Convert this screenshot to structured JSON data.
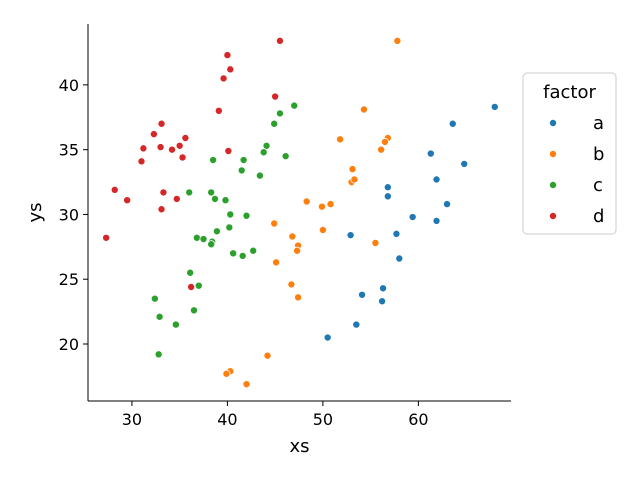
{
  "chart_data": {
    "type": "scatter",
    "title": "",
    "xlabel": "xs",
    "ylabel": "ys",
    "xlim": [
      25.4,
      69.7
    ],
    "ylim": [
      15.6,
      44.7
    ],
    "xticks": [
      30,
      40,
      50,
      60
    ],
    "yticks": [
      20,
      25,
      30,
      35,
      40
    ],
    "grid": false,
    "legend": {
      "title": "factor",
      "placement": "right"
    },
    "series": [
      {
        "name": "a",
        "color": "#1f77b4",
        "points": [
          [
            68.0,
            38.3
          ],
          [
            63.6,
            37.0
          ],
          [
            64.8,
            33.9
          ],
          [
            61.3,
            34.7
          ],
          [
            61.9,
            32.7
          ],
          [
            63.0,
            30.8
          ],
          [
            61.9,
            29.5
          ],
          [
            59.4,
            29.8
          ],
          [
            56.8,
            32.1
          ],
          [
            56.8,
            31.4
          ],
          [
            57.7,
            28.5
          ],
          [
            58.0,
            26.6
          ],
          [
            52.9,
            28.4
          ],
          [
            56.3,
            24.3
          ],
          [
            54.1,
            23.8
          ],
          [
            56.2,
            23.3
          ],
          [
            53.5,
            21.5
          ],
          [
            50.5,
            20.5
          ]
        ]
      },
      {
        "name": "b",
        "color": "#ff7f0e",
        "points": [
          [
            57.8,
            43.4
          ],
          [
            54.3,
            38.1
          ],
          [
            51.8,
            35.8
          ],
          [
            56.8,
            35.9
          ],
          [
            56.5,
            35.6
          ],
          [
            56.1,
            35.0
          ],
          [
            53.1,
            33.5
          ],
          [
            53.0,
            32.5
          ],
          [
            53.3,
            32.7
          ],
          [
            48.3,
            31.0
          ],
          [
            49.9,
            30.6
          ],
          [
            50.8,
            30.8
          ],
          [
            44.9,
            29.3
          ],
          [
            50.0,
            28.8
          ],
          [
            46.8,
            28.3
          ],
          [
            47.4,
            27.6
          ],
          [
            47.3,
            27.2
          ],
          [
            55.5,
            27.8
          ],
          [
            45.1,
            26.3
          ],
          [
            46.7,
            24.6
          ],
          [
            47.4,
            23.6
          ],
          [
            44.2,
            19.1
          ],
          [
            40.3,
            17.9
          ],
          [
            39.9,
            17.7
          ],
          [
            42.0,
            16.9
          ]
        ]
      },
      {
        "name": "c",
        "color": "#2ca02c",
        "points": [
          [
            47.0,
            38.4
          ],
          [
            45.5,
            37.8
          ],
          [
            44.9,
            37.0
          ],
          [
            44.1,
            35.3
          ],
          [
            43.8,
            34.8
          ],
          [
            46.1,
            34.5
          ],
          [
            41.7,
            34.2
          ],
          [
            38.5,
            34.2
          ],
          [
            41.5,
            33.4
          ],
          [
            43.4,
            33.0
          ],
          [
            36.0,
            31.7
          ],
          [
            38.3,
            31.7
          ],
          [
            38.7,
            31.2
          ],
          [
            39.8,
            31.1
          ],
          [
            40.3,
            30.0
          ],
          [
            42.0,
            29.9
          ],
          [
            40.2,
            29.0
          ],
          [
            38.9,
            28.7
          ],
          [
            36.8,
            28.2
          ],
          [
            37.5,
            28.1
          ],
          [
            38.4,
            27.9
          ],
          [
            38.3,
            27.7
          ],
          [
            42.7,
            27.2
          ],
          [
            40.6,
            27.0
          ],
          [
            41.6,
            26.8
          ],
          [
            36.1,
            25.5
          ],
          [
            37.0,
            24.5
          ],
          [
            32.4,
            23.5
          ],
          [
            36.5,
            22.6
          ],
          [
            32.9,
            22.1
          ],
          [
            34.6,
            21.5
          ],
          [
            32.8,
            19.2
          ]
        ]
      },
      {
        "name": "d",
        "color": "#d62728",
        "points": [
          [
            45.5,
            43.4
          ],
          [
            40.0,
            42.3
          ],
          [
            40.3,
            41.2
          ],
          [
            39.6,
            40.5
          ],
          [
            45.0,
            39.1
          ],
          [
            39.1,
            38.0
          ],
          [
            33.1,
            37.0
          ],
          [
            32.3,
            36.2
          ],
          [
            35.6,
            35.9
          ],
          [
            35.0,
            35.3
          ],
          [
            31.2,
            35.1
          ],
          [
            33.0,
            35.2
          ],
          [
            34.2,
            35.0
          ],
          [
            40.1,
            34.9
          ],
          [
            35.3,
            34.4
          ],
          [
            31.0,
            34.1
          ],
          [
            28.2,
            31.9
          ],
          [
            33.3,
            31.7
          ],
          [
            34.7,
            31.2
          ],
          [
            29.5,
            31.1
          ],
          [
            33.1,
            30.4
          ],
          [
            27.3,
            28.2
          ],
          [
            36.2,
            24.4
          ]
        ]
      }
    ]
  }
}
